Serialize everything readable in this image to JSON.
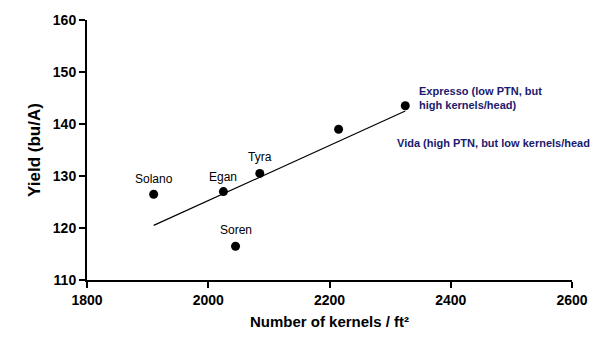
{
  "chart_data": {
    "type": "scatter",
    "x_label": "Number of kernels / ft²",
    "y_label": "Yield (bu/A)",
    "x": [
      1910,
      2025,
      2085,
      2045,
      2215,
      2325
    ],
    "values": [
      126.5,
      127,
      130.5,
      116.5,
      139,
      143.5
    ],
    "labels": [
      "Solano",
      "Egan",
      "Tyra",
      "Soren",
      "Vida (high PTN, but low kernels/head",
      "Expresso (low PTN, but\nhigh kernels/head)"
    ],
    "trend": {
      "x": [
        1910,
        2325
      ],
      "values": [
        120.5,
        142.5
      ]
    },
    "color": "#000000",
    "marker": "circle",
    "xlim": [
      1800,
      2600
    ],
    "xticks": [
      1800,
      2000,
      2200,
      2400,
      2600
    ],
    "ylim": [
      110,
      160
    ],
    "yticks": [
      110,
      120,
      130,
      140,
      150,
      160
    ],
    "grid": false
  }
}
